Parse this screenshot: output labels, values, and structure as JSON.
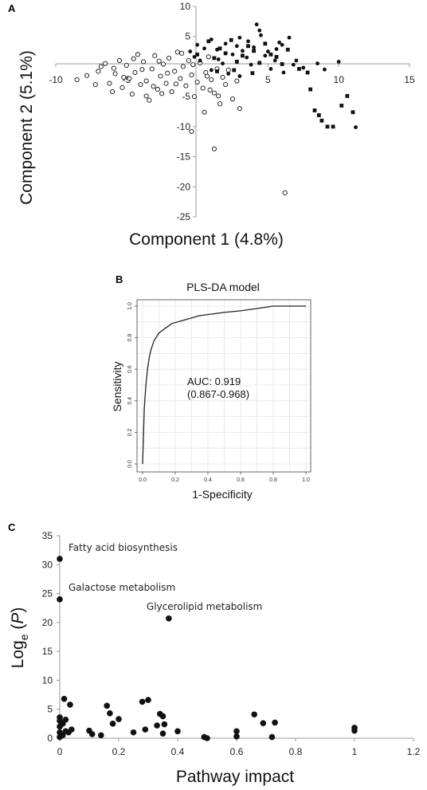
{
  "chart_data": [
    {
      "panel_label": "A",
      "type": "scatter",
      "xlabel": "Component 1 (4.8%)",
      "ylabel": "Component 2 (5.1%)",
      "xlim": [
        -10,
        15
      ],
      "ylim": [
        -25,
        10
      ],
      "x_ticks": [
        -10,
        -5,
        5,
        10,
        15
      ],
      "y_ticks": [
        10,
        5,
        -5,
        -10,
        -15,
        -20,
        -25
      ],
      "grid": false,
      "series": [
        {
          "marker": "open-circle",
          "points": [
            [
              -8.5,
              -2.2
            ],
            [
              -7.8,
              -1.5
            ],
            [
              -7.2,
              -3.0
            ],
            [
              -7.0,
              -0.8
            ],
            [
              -6.5,
              0.5
            ],
            [
              -6.2,
              -2.8
            ],
            [
              -6.0,
              -4.2
            ],
            [
              -5.8,
              -1.2
            ],
            [
              -5.5,
              1.0
            ],
            [
              -5.3,
              -3.5
            ],
            [
              -5.0,
              0.2
            ],
            [
              -4.8,
              -2.0
            ],
            [
              -4.6,
              -4.6
            ],
            [
              -4.4,
              -1.0
            ],
            [
              -4.2,
              2.0
            ],
            [
              -4.0,
              -3.0
            ],
            [
              -3.8,
              0.8
            ],
            [
              -3.6,
              -2.4
            ],
            [
              -3.4,
              -5.6
            ],
            [
              -3.2,
              -0.4
            ],
            [
              -3.0,
              1.8
            ],
            [
              -2.8,
              -3.8
            ],
            [
              -2.6,
              -1.6
            ],
            [
              -2.4,
              0.4
            ],
            [
              -2.2,
              -2.8
            ],
            [
              -2.0,
              1.4
            ],
            [
              -1.8,
              -4.2
            ],
            [
              -1.6,
              -0.8
            ],
            [
              -1.4,
              2.4
            ],
            [
              -1.2,
              -2.0
            ],
            [
              -1.0,
              0.0
            ],
            [
              -0.8,
              -3.2
            ],
            [
              -0.6,
              1.0
            ],
            [
              -0.4,
              -1.4
            ],
            [
              -0.2,
              -5.0
            ],
            [
              0.0,
              -2.6
            ],
            [
              0.2,
              0.6
            ],
            [
              0.4,
              -3.6
            ],
            [
              0.6,
              -1.0
            ],
            [
              0.8,
              1.6
            ],
            [
              1.0,
              -2.2
            ],
            [
              1.2,
              -4.4
            ],
            [
              1.4,
              -0.4
            ],
            [
              1.6,
              -6.2
            ],
            [
              1.8,
              -1.8
            ],
            [
              2.0,
              -3.0
            ],
            [
              2.2,
              -0.6
            ],
            [
              2.5,
              -5.4
            ],
            [
              2.8,
              -2.4
            ],
            [
              3.0,
              -7.0
            ],
            [
              -6.8,
              0.0
            ],
            [
              -5.2,
              -1.8
            ],
            [
              -3.9,
              -0.5
            ],
            [
              -2.7,
              0.9
            ],
            [
              -1.5,
              -2.9
            ],
            [
              -0.3,
              0.3
            ],
            [
              0.9,
              -3.9
            ],
            [
              -4.5,
              1.3
            ],
            [
              -3.1,
              -3.3
            ],
            [
              -2.1,
              -1.1
            ],
            [
              0.5,
              -7.6
            ],
            [
              -0.4,
              -10.8
            ],
            [
              1.2,
              -13.7
            ],
            [
              6.2,
              -21.0
            ],
            [
              -3.6,
              -4.9
            ],
            [
              -1.1,
              2.2
            ],
            [
              0.7,
              -1.6
            ],
            [
              -5.9,
              -0.3
            ],
            [
              1.5,
              -4.9
            ],
            [
              -2.5,
              -4.5
            ]
          ]
        },
        {
          "marker": "filled-circle",
          "points": [
            [
              -0.5,
              2.5
            ],
            [
              0.5,
              3.0
            ],
            [
              1.0,
              4.5
            ],
            [
              1.5,
              1.2
            ],
            [
              2.0,
              3.8
            ],
            [
              2.5,
              2.0
            ],
            [
              3.0,
              4.8
            ],
            [
              3.5,
              1.5
            ],
            [
              4.0,
              3.2
            ],
            [
              4.5,
              5.2
            ],
            [
              5.0,
              2.5
            ],
            [
              5.5,
              1.0
            ],
            [
              6.0,
              3.6
            ],
            [
              6.5,
              4.8
            ],
            [
              7.0,
              1.0
            ],
            [
              8.5,
              0.5
            ],
            [
              9.0,
              -0.5
            ],
            [
              10.0,
              0.8
            ],
            [
              11.2,
              -10.1
            ],
            [
              4.2,
              7.0
            ],
            [
              5.8,
              4.0
            ],
            [
              2.2,
              -1.2
            ],
            [
              3.8,
              0.3
            ],
            [
              5.2,
              -0.4
            ],
            [
              0.2,
              1.0
            ],
            [
              1.8,
              0.5
            ],
            [
              3.2,
              2.6
            ],
            [
              4.8,
              1.8
            ],
            [
              6.8,
              0.3
            ],
            [
              5.6,
              2.9
            ],
            [
              4.4,
              6.0
            ],
            [
              2.8,
              3.4
            ],
            [
              1.4,
              2.8
            ],
            [
              0.0,
              3.6
            ],
            [
              -0.2,
              1.6
            ],
            [
              3.6,
              4.2
            ],
            [
              6.1,
              -1.0
            ],
            [
              7.5,
              -0.2
            ],
            [
              3.0,
              -1.6
            ],
            [
              1.0,
              -0.6
            ]
          ]
        },
        {
          "marker": "filled-square",
          "points": [
            [
              0.0,
              2.0
            ],
            [
              0.8,
              4.2
            ],
            [
              1.6,
              3.0
            ],
            [
              2.4,
              4.4
            ],
            [
              3.2,
              1.8
            ],
            [
              4.0,
              2.6
            ],
            [
              4.8,
              3.8
            ],
            [
              5.6,
              1.6
            ],
            [
              6.4,
              2.8
            ],
            [
              7.2,
              -0.4
            ],
            [
              7.8,
              -1.0
            ],
            [
              8.0,
              -3.8
            ],
            [
              8.3,
              -7.3
            ],
            [
              8.6,
              -8.1
            ],
            [
              8.8,
              -9.0
            ],
            [
              9.2,
              -10.0
            ],
            [
              9.6,
              -10.0
            ],
            [
              10.2,
              -6.5
            ],
            [
              10.6,
              -4.9
            ],
            [
              11.0,
              -7.6
            ],
            [
              1.2,
              1.4
            ],
            [
              2.0,
              2.2
            ],
            [
              2.8,
              0.8
            ],
            [
              3.6,
              3.4
            ],
            [
              4.4,
              0.6
            ],
            [
              5.2,
              2.0
            ],
            [
              6.0,
              0.4
            ],
            [
              2.6,
              -0.6
            ],
            [
              1.4,
              -0.8
            ],
            [
              3.9,
              -1.1
            ]
          ]
        }
      ]
    },
    {
      "panel_label": "B",
      "type": "line",
      "title": "PLS-DA model",
      "xlabel": "1-Specificity",
      "ylabel": "Sensitivity",
      "xlim": [
        0,
        1
      ],
      "ylim": [
        0,
        1
      ],
      "x_ticks": [
        "0.0",
        "0.2",
        "0.4",
        "0.6",
        "0.8",
        "1.0"
      ],
      "y_ticks": [
        "0.0",
        "0.2",
        "0.4",
        "0.6",
        "0.8",
        "1.0"
      ],
      "grid": true,
      "annotations": [
        "AUC: 0.919",
        "(0.867-0.968)"
      ],
      "series": [
        {
          "points": [
            [
              0.0,
              0.0
            ],
            [
              0.01,
              0.35
            ],
            [
              0.02,
              0.5
            ],
            [
              0.03,
              0.6
            ],
            [
              0.04,
              0.67
            ],
            [
              0.05,
              0.72
            ],
            [
              0.07,
              0.78
            ],
            [
              0.1,
              0.83
            ],
            [
              0.14,
              0.86
            ],
            [
              0.18,
              0.89
            ],
            [
              0.25,
              0.91
            ],
            [
              0.35,
              0.94
            ],
            [
              0.5,
              0.96
            ],
            [
              0.6,
              0.97
            ],
            [
              0.7,
              0.985
            ],
            [
              0.8,
              1.0
            ],
            [
              0.9,
              1.0
            ],
            [
              1.0,
              1.0
            ]
          ]
        }
      ]
    },
    {
      "panel_label": "C",
      "type": "scatter",
      "xlabel": "Pathway impact",
      "ylabel_main": "Log",
      "ylabel_sub": "e",
      "ylabel_var": "P",
      "xlim": [
        0,
        1.2
      ],
      "ylim": [
        0,
        35
      ],
      "x_ticks": [
        "0",
        "0.2",
        "0.4",
        "0.6",
        "0.8",
        "1",
        "1.2"
      ],
      "y_ticks": [
        "0",
        "5",
        "10",
        "15",
        "20",
        "25",
        "30",
        "35"
      ],
      "grid": false,
      "annotations": [
        {
          "text": "Fatty acid biosynthesis",
          "x": 0.0,
          "y": 31.0
        },
        {
          "text": "Galactose metabolism",
          "x": 0.0,
          "y": 24.0
        },
        {
          "text": "Glycerolipid metabolism",
          "x": 0.37,
          "y": 20.7
        }
      ],
      "series": [
        {
          "marker": "filled-circle",
          "points": [
            [
              0.0,
              31.0
            ],
            [
              0.0,
              24.0
            ],
            [
              0.37,
              20.7
            ],
            [
              0.0,
              0.2
            ],
            [
              0.0,
              1.0
            ],
            [
              0.0,
              2.0
            ],
            [
              0.0,
              3.0
            ],
            [
              0.0,
              3.6
            ],
            [
              0.01,
              2.5
            ],
            [
              0.01,
              0.5
            ],
            [
              0.02,
              3.2
            ],
            [
              0.02,
              1.2
            ],
            [
              0.015,
              6.8
            ],
            [
              0.03,
              1.0
            ],
            [
              0.035,
              5.8
            ],
            [
              0.04,
              1.5
            ],
            [
              0.1,
              1.3
            ],
            [
              0.11,
              0.7
            ],
            [
              0.14,
              0.5
            ],
            [
              0.16,
              5.6
            ],
            [
              0.17,
              4.3
            ],
            [
              0.18,
              2.5
            ],
            [
              0.2,
              3.3
            ],
            [
              0.25,
              1.0
            ],
            [
              0.28,
              6.3
            ],
            [
              0.3,
              6.6
            ],
            [
              0.29,
              1.5
            ],
            [
              0.33,
              2.2
            ],
            [
              0.34,
              4.2
            ],
            [
              0.35,
              3.8
            ],
            [
              0.355,
              2.4
            ],
            [
              0.35,
              0.8
            ],
            [
              0.4,
              1.2
            ],
            [
              0.49,
              0.2
            ],
            [
              0.5,
              0.0
            ],
            [
              0.6,
              1.2
            ],
            [
              0.6,
              0.3
            ],
            [
              0.66,
              4.1
            ],
            [
              0.69,
              2.6
            ],
            [
              0.72,
              0.2
            ],
            [
              0.73,
              2.7
            ],
            [
              1.0,
              1.8
            ],
            [
              1.0,
              1.3
            ]
          ]
        }
      ]
    }
  ]
}
